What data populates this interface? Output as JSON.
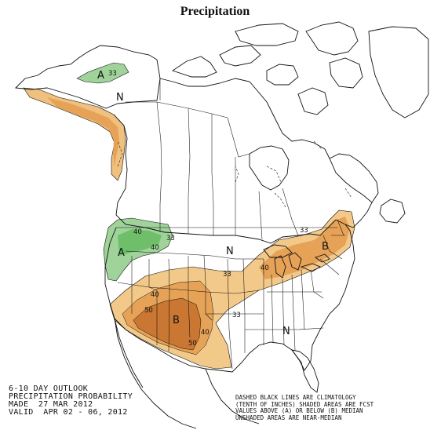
{
  "title": "Precipitation",
  "outlook": {
    "line1": "6-10 DAY OUTLOOK",
    "line2": "PRECIPITATION PROBABILITY",
    "line3": "MADE  27 MAR 2012",
    "line4": "VALID  APR 02 - 06, 2012"
  },
  "legend": {
    "line1": "DASHED BLACK LINES ARE CLIMATOLOGY",
    "line2": "(TENTH OF INCHES) SHADED AREAS ARE FCST",
    "line3": "VALUES ABOVE (A) OR BELOW (B) MEDIAN",
    "line4": "UNSHADED AREAS ARE NEAR-MEDIAN"
  },
  "colors": {
    "above_33": "#9fd39a",
    "above_40": "#6fbf6a",
    "below_33": "#f3c98a",
    "below_40": "#e6a357",
    "below_50": "#c97732",
    "boundary": "#111111"
  },
  "regions": [
    {
      "label": "A",
      "category": "above",
      "area": "Western Alaska"
    },
    {
      "label": "N",
      "category": "near-median",
      "area": "Interior Alaska"
    },
    {
      "label": "A",
      "category": "above",
      "area": "Pacific Northwest"
    },
    {
      "label": "N",
      "category": "near-median",
      "area": "Central US / Canada"
    },
    {
      "label": "B",
      "category": "below",
      "area": "Northeast"
    },
    {
      "label": "B",
      "category": "below",
      "area": "Southwest"
    },
    {
      "label": "N",
      "category": "near-median",
      "area": "Southeast"
    }
  ],
  "contour_labels": {
    "ak_33": "33",
    "nw_40": "40",
    "nw_33": "33",
    "nw_40b": "40",
    "ne_40": "40",
    "sw_40": "40",
    "sw_50": "50",
    "sw_40b": "40",
    "sw_50b": "50",
    "plains_33": "33",
    "texas_33": "33",
    "gl_33": "33"
  }
}
